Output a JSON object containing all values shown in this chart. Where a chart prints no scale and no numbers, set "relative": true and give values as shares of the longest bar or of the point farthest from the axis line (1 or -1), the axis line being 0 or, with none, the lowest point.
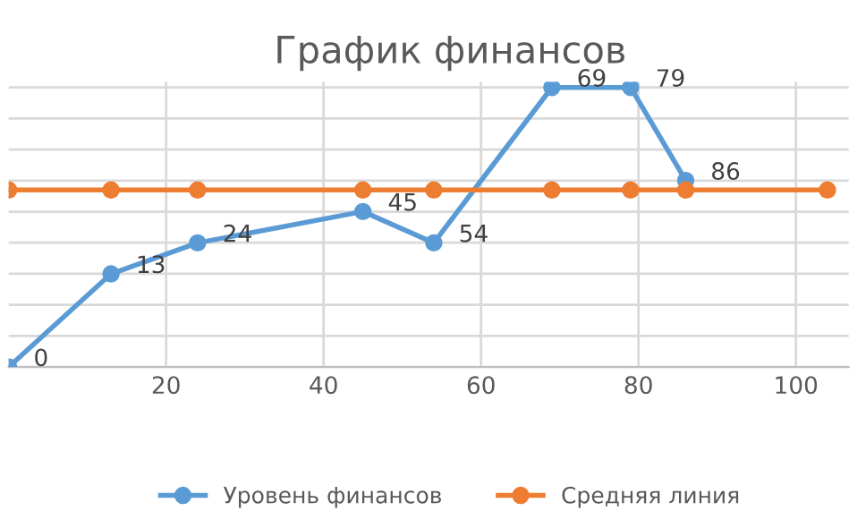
{
  "chart_data": {
    "type": "line",
    "title": "График финансов",
    "relative": true,
    "xlim": [
      0,
      106.7
    ],
    "xticks": [
      20,
      40,
      60,
      80,
      100
    ],
    "grid": true,
    "legend": "bottom",
    "marker": "circle",
    "line_style": "solid",
    "series": [
      {
        "name": "Уровень финансов",
        "color": "#5b9bd5",
        "x": [
          0,
          13,
          24,
          45,
          54,
          69,
          79,
          86
        ],
        "values": [
          0,
          0.333,
          0.444,
          0.556,
          0.444,
          1,
          1,
          0.667
        ]
      },
      {
        "name": "Средняя линия",
        "color": "#ed7d31",
        "x": [
          0,
          13,
          24,
          45,
          54,
          69,
          79,
          86,
          104
        ],
        "values": [
          0.633,
          0.633,
          0.633,
          0.633,
          0.633,
          0.633,
          0.633,
          0.633,
          0.633
        ]
      }
    ],
    "annotations": [
      {
        "text": "0",
        "x": 0,
        "y": 0
      },
      {
        "text": "13",
        "x": 13,
        "y": 0.333
      },
      {
        "text": "24",
        "x": 24,
        "y": 0.444
      },
      {
        "text": "45",
        "x": 45,
        "y": 0.556
      },
      {
        "text": "54",
        "x": 54,
        "y": 0.444
      },
      {
        "text": "69",
        "x": 69,
        "y": 1
      },
      {
        "text": "79",
        "x": 79,
        "y": 1
      },
      {
        "text": "86",
        "x": 86,
        "y": 0.667
      }
    ]
  }
}
